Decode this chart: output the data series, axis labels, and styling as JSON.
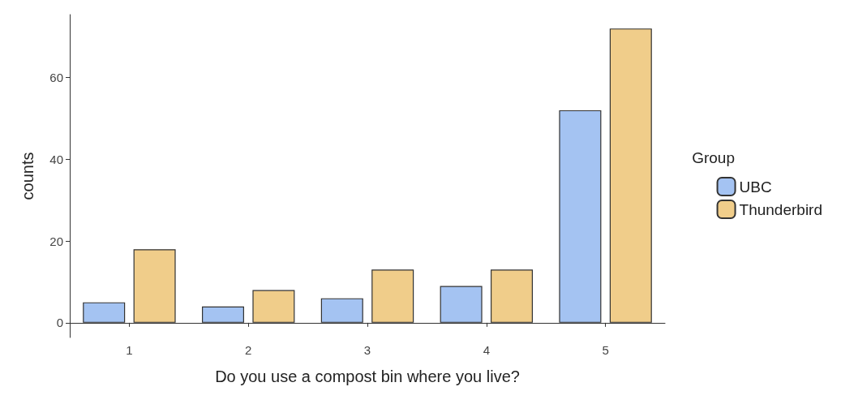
{
  "chart_data": {
    "type": "bar",
    "xlabel": "Do you use a compost bin where you live?",
    "ylabel": "counts",
    "legend_title": "Group",
    "legend": "right",
    "grid": false,
    "categories": [
      "1",
      "2",
      "3",
      "4",
      "5"
    ],
    "series": [
      {
        "name": "UBC",
        "color": "#a4c3f2",
        "values": [
          5,
          4,
          6,
          9,
          52
        ]
      },
      {
        "name": "Thunderbird",
        "color": "#f0cd8a",
        "values": [
          18,
          8,
          13,
          13,
          72
        ]
      }
    ],
    "ylim": [
      -3.6,
      75.4
    ],
    "yticks": [
      0,
      20,
      40,
      60
    ]
  }
}
